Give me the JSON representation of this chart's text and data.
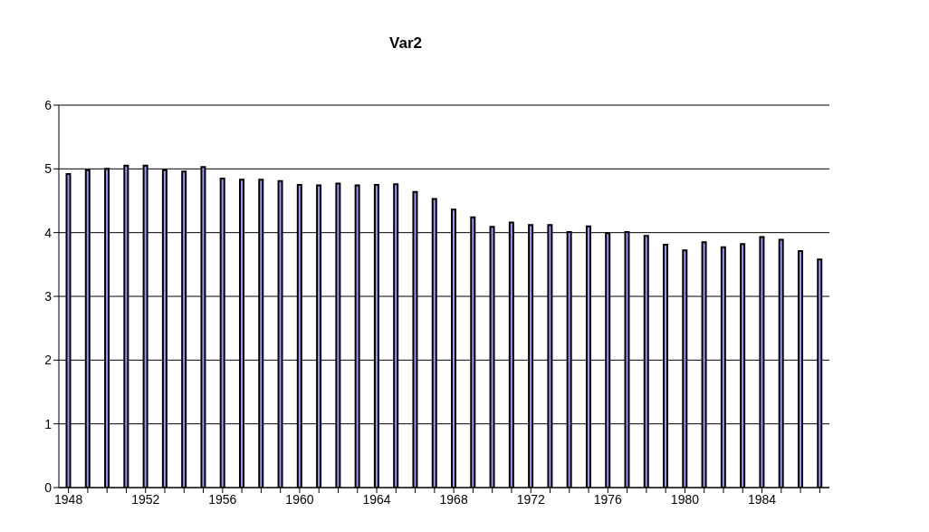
{
  "chart_data": {
    "type": "bar",
    "title": "Var2",
    "categories": [
      "1948",
      null,
      null,
      null,
      "1952",
      null,
      null,
      null,
      "1956",
      null,
      null,
      null,
      "1960",
      null,
      null,
      null,
      "1964",
      null,
      null,
      null,
      "1968",
      null,
      null,
      null,
      "1972",
      null,
      null,
      null,
      "1976",
      null,
      null,
      null,
      "1980",
      null,
      null,
      null,
      "1984",
      null,
      null,
      null
    ],
    "values": [
      4.92,
      4.98,
      5.0,
      5.05,
      5.05,
      4.98,
      4.96,
      5.03,
      4.85,
      4.83,
      4.83,
      4.81,
      4.75,
      4.74,
      4.77,
      4.74,
      4.75,
      4.76,
      4.64,
      4.53,
      4.36,
      4.24,
      4.09,
      4.16,
      4.12,
      4.12,
      4.01,
      4.1,
      3.99,
      4.01,
      3.95,
      3.81,
      3.72,
      3.85,
      3.77,
      3.82,
      3.93,
      3.89,
      3.71,
      3.58
    ],
    "color": "#9999ff",
    "ylim": [
      0,
      6
    ],
    "yticks": [
      0,
      1,
      2,
      3,
      4,
      5,
      6
    ],
    "grid": "y",
    "legend": false
  }
}
